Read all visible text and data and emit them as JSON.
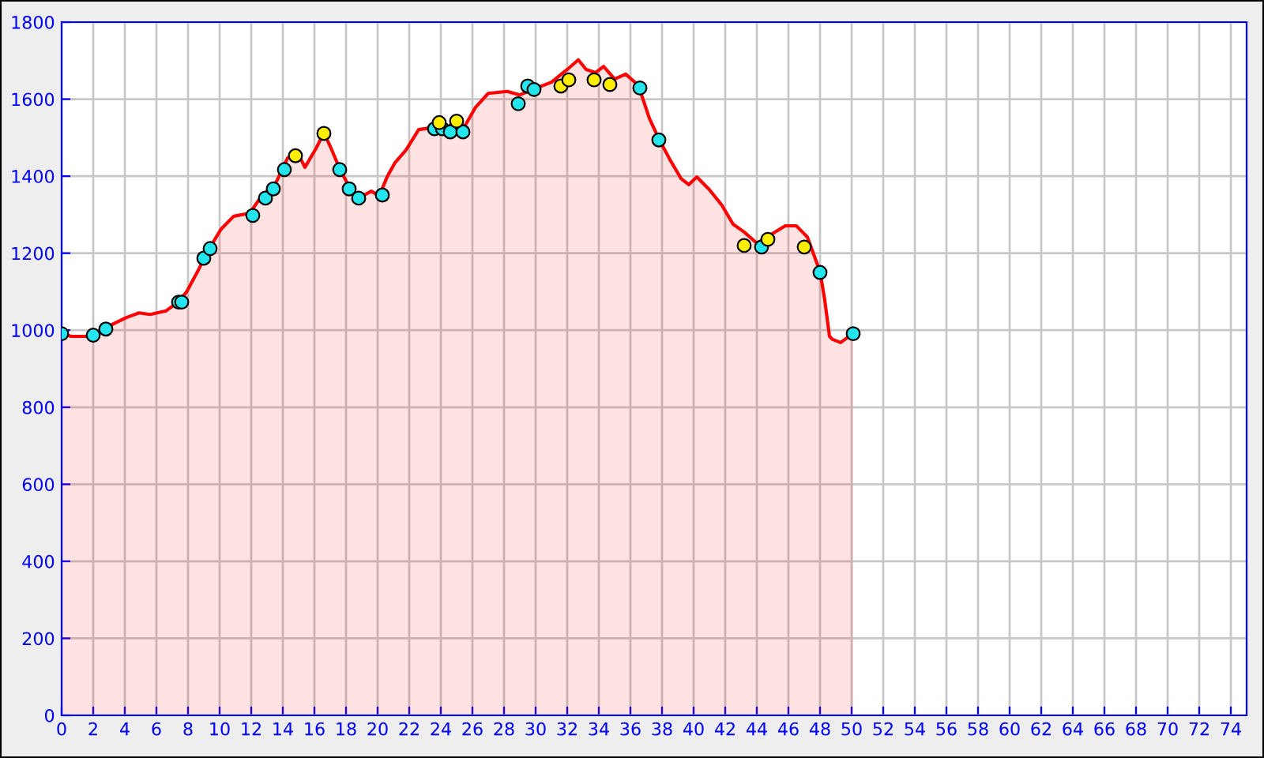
{
  "chart_data": {
    "type": "area",
    "xlim": [
      0,
      75
    ],
    "xticks": [
      0,
      2,
      4,
      6,
      8,
      10,
      12,
      14,
      16,
      18,
      20,
      22,
      24,
      26,
      28,
      30,
      32,
      34,
      36,
      38,
      40,
      42,
      44,
      46,
      48,
      50,
      52,
      54,
      56,
      58,
      60,
      62,
      64,
      66,
      68,
      70,
      72,
      74
    ],
    "ylim": [
      0,
      1800
    ],
    "yticks": [
      0,
      200,
      400,
      600,
      800,
      1000,
      1200,
      1400,
      1600,
      1800
    ],
    "grid": true,
    "series": [
      {
        "color": "#ff0000",
        "marker": "none",
        "x": [
          0,
          0.6,
          1.6,
          2.1,
          3.1,
          4.1,
          4.9,
          5.6,
          6.6,
          7.4,
          7.9,
          8.6,
          9.3,
          10.1,
          10.9,
          11.9,
          12.6,
          13.6,
          14.3,
          14.9,
          15.4,
          16.1,
          16.6,
          17.1,
          17.6,
          18.3,
          18.9,
          19.6,
          20.1,
          20.6,
          21.1,
          21.8,
          22.6,
          23.3,
          24.1,
          24.9,
          25.5,
          26.2,
          27.0,
          28.2,
          29.0,
          30.0,
          31.0,
          32.0,
          32.7,
          33.2,
          33.8,
          34.3,
          35.0,
          35.7,
          36.5,
          37.2,
          37.8,
          38.5,
          39.2,
          39.7,
          40.2,
          41.0,
          41.8,
          42.5,
          43.2,
          44.0,
          45.0,
          45.8,
          46.5,
          47.2,
          48.0,
          48.3,
          48.6,
          48.8,
          49.3,
          50.1
        ],
        "values": [
          992,
          984,
          984,
          992,
          1013,
          1033,
          1045,
          1041,
          1050,
          1074,
          1099,
          1152,
          1209,
          1263,
          1296,
          1304,
          1345,
          1386,
          1447,
          1464,
          1423,
          1472,
          1513,
          1468,
          1419,
          1365,
          1345,
          1361,
          1349,
          1398,
          1435,
          1468,
          1521,
          1525,
          1517,
          1542,
          1529,
          1579,
          1615,
          1620,
          1611,
          1628,
          1644,
          1677,
          1702,
          1677,
          1669,
          1685,
          1652,
          1665,
          1636,
          1550,
          1497,
          1443,
          1394,
          1378,
          1398,
          1365,
          1324,
          1275,
          1255,
          1226,
          1251,
          1271,
          1271,
          1242,
          1152,
          1078,
          984,
          976,
          968,
          992
        ]
      },
      {
        "type": "scatter",
        "color": "#22e5ee",
        "marker": "circle",
        "x": [
          0,
          2.0,
          2.8,
          7.4,
          7.6,
          9.0,
          9.4,
          12.1,
          12.9,
          13.4,
          14.1,
          17.6,
          18.2,
          18.8,
          20.3,
          23.6,
          24.1,
          24.6,
          25.4,
          28.9,
          29.5,
          29.9,
          36.6,
          37.8,
          44.3,
          48.0,
          50.1
        ],
        "values": [
          991,
          987,
          1003,
          1073,
          1073,
          1187,
          1212,
          1298,
          1343,
          1367,
          1417,
          1417,
          1367,
          1343,
          1351,
          1523,
          1523,
          1515,
          1515,
          1588,
          1634,
          1625,
          1629,
          1494,
          1216,
          1150,
          991
        ]
      },
      {
        "type": "scatter",
        "color": "#ffee00",
        "marker": "circle",
        "x": [
          14.8,
          16.6,
          23.9,
          25.0,
          31.6,
          32.1,
          33.7,
          34.7,
          43.2,
          44.7,
          47.0
        ],
        "values": [
          1453,
          1511,
          1539,
          1543,
          1634,
          1650,
          1650,
          1638,
          1220,
          1236,
          1216
        ]
      }
    ]
  }
}
